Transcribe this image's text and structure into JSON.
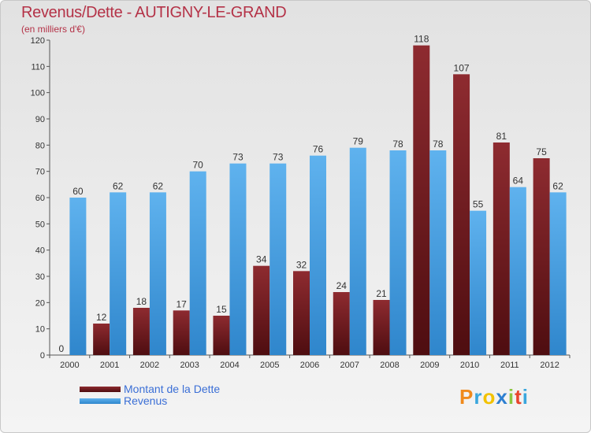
{
  "header": {
    "title": "Revenus/Dette - AUTIGNY-LE-GRAND",
    "subtitle": "(en milliers d'€)"
  },
  "logo": {
    "text": "Proxiti",
    "colors": [
      "#f08a1c",
      "#3aa6dd",
      "#f2c200",
      "#2d7fd1",
      "#8cc63f",
      "#e8452c",
      "#3aa6dd"
    ]
  },
  "colors": {
    "dette": "#7a1e22",
    "revenus": "#4aa3e6",
    "title": "#b43247"
  },
  "chart_data": {
    "type": "bar",
    "title": "Revenus/Dette - AUTIGNY-LE-GRAND",
    "subtitle": "(en milliers d'€)",
    "xlabel": "",
    "ylabel": "",
    "categories": [
      "2000",
      "2001",
      "2002",
      "2003",
      "2004",
      "2005",
      "2006",
      "2007",
      "2008",
      "2009",
      "2010",
      "2011",
      "2012"
    ],
    "series": [
      {
        "name": "Montant de la Dette",
        "values": [
          0,
          12,
          18,
          17,
          15,
          34,
          32,
          24,
          21,
          118,
          107,
          81,
          75
        ]
      },
      {
        "name": "Revenus",
        "values": [
          60,
          62,
          62,
          70,
          73,
          73,
          76,
          79,
          78,
          78,
          55,
          64,
          62
        ]
      }
    ],
    "ylim": [
      0,
      120
    ],
    "yticks": [
      0,
      10,
      20,
      30,
      40,
      50,
      60,
      70,
      80,
      90,
      100,
      110,
      120
    ],
    "grid": false,
    "legend_position": "bottom-left"
  }
}
